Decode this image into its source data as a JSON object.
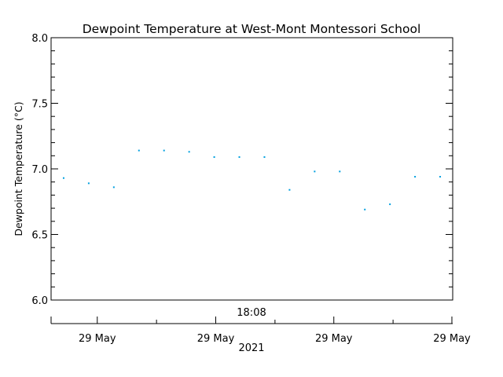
{
  "chart_data": {
    "type": "scatter",
    "title": "Dewpoint Temperature at West-Mont Montessori School",
    "ylabel": "Dewpoint Temperature (°C)",
    "ylim": [
      6.0,
      8.0
    ],
    "yticks": [
      "6.0",
      "6.5",
      "7.0",
      "7.5",
      "8.0"
    ],
    "time_label": "18:08",
    "xtick_labels": [
      "29 May",
      "29 May",
      "29 May",
      "29 May"
    ],
    "year_label": "2021",
    "grid": false,
    "marker_color": "#00a0e0",
    "series": [
      {
        "values": [
          6.93,
          6.89,
          6.86,
          7.14,
          7.14,
          7.13,
          7.09,
          7.09,
          7.09,
          6.84,
          6.98,
          6.98,
          6.69,
          6.73,
          6.94,
          6.94
        ]
      }
    ]
  }
}
